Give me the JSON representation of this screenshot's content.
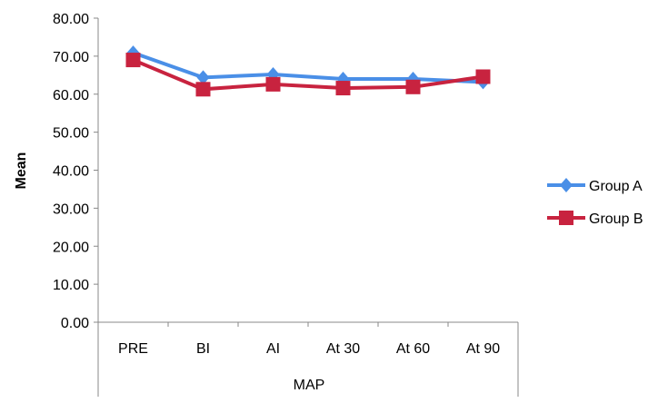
{
  "chart_data": {
    "type": "line",
    "title": "",
    "xlabel": "MAP",
    "ylabel": "Mean",
    "categories": [
      "PRE",
      "BI",
      "AI",
      "At 30",
      "At 60",
      "At 90"
    ],
    "ylim": [
      0,
      80
    ],
    "yticks": [
      "0.00",
      "10.00",
      "20.00",
      "30.00",
      "40.00",
      "50.00",
      "60.00",
      "70.00",
      "80.00"
    ],
    "grid": false,
    "legend_position": "right",
    "series": [
      {
        "name": "Group A",
        "color": "#4a8fe7",
        "marker": "diamond",
        "values": [
          70.9,
          64.4,
          65.2,
          64.0,
          64.0,
          63.2
        ]
      },
      {
        "name": "Group B",
        "color": "#c8233f",
        "marker": "square",
        "values": [
          69.0,
          61.3,
          62.6,
          61.6,
          61.9,
          64.6
        ]
      }
    ]
  }
}
